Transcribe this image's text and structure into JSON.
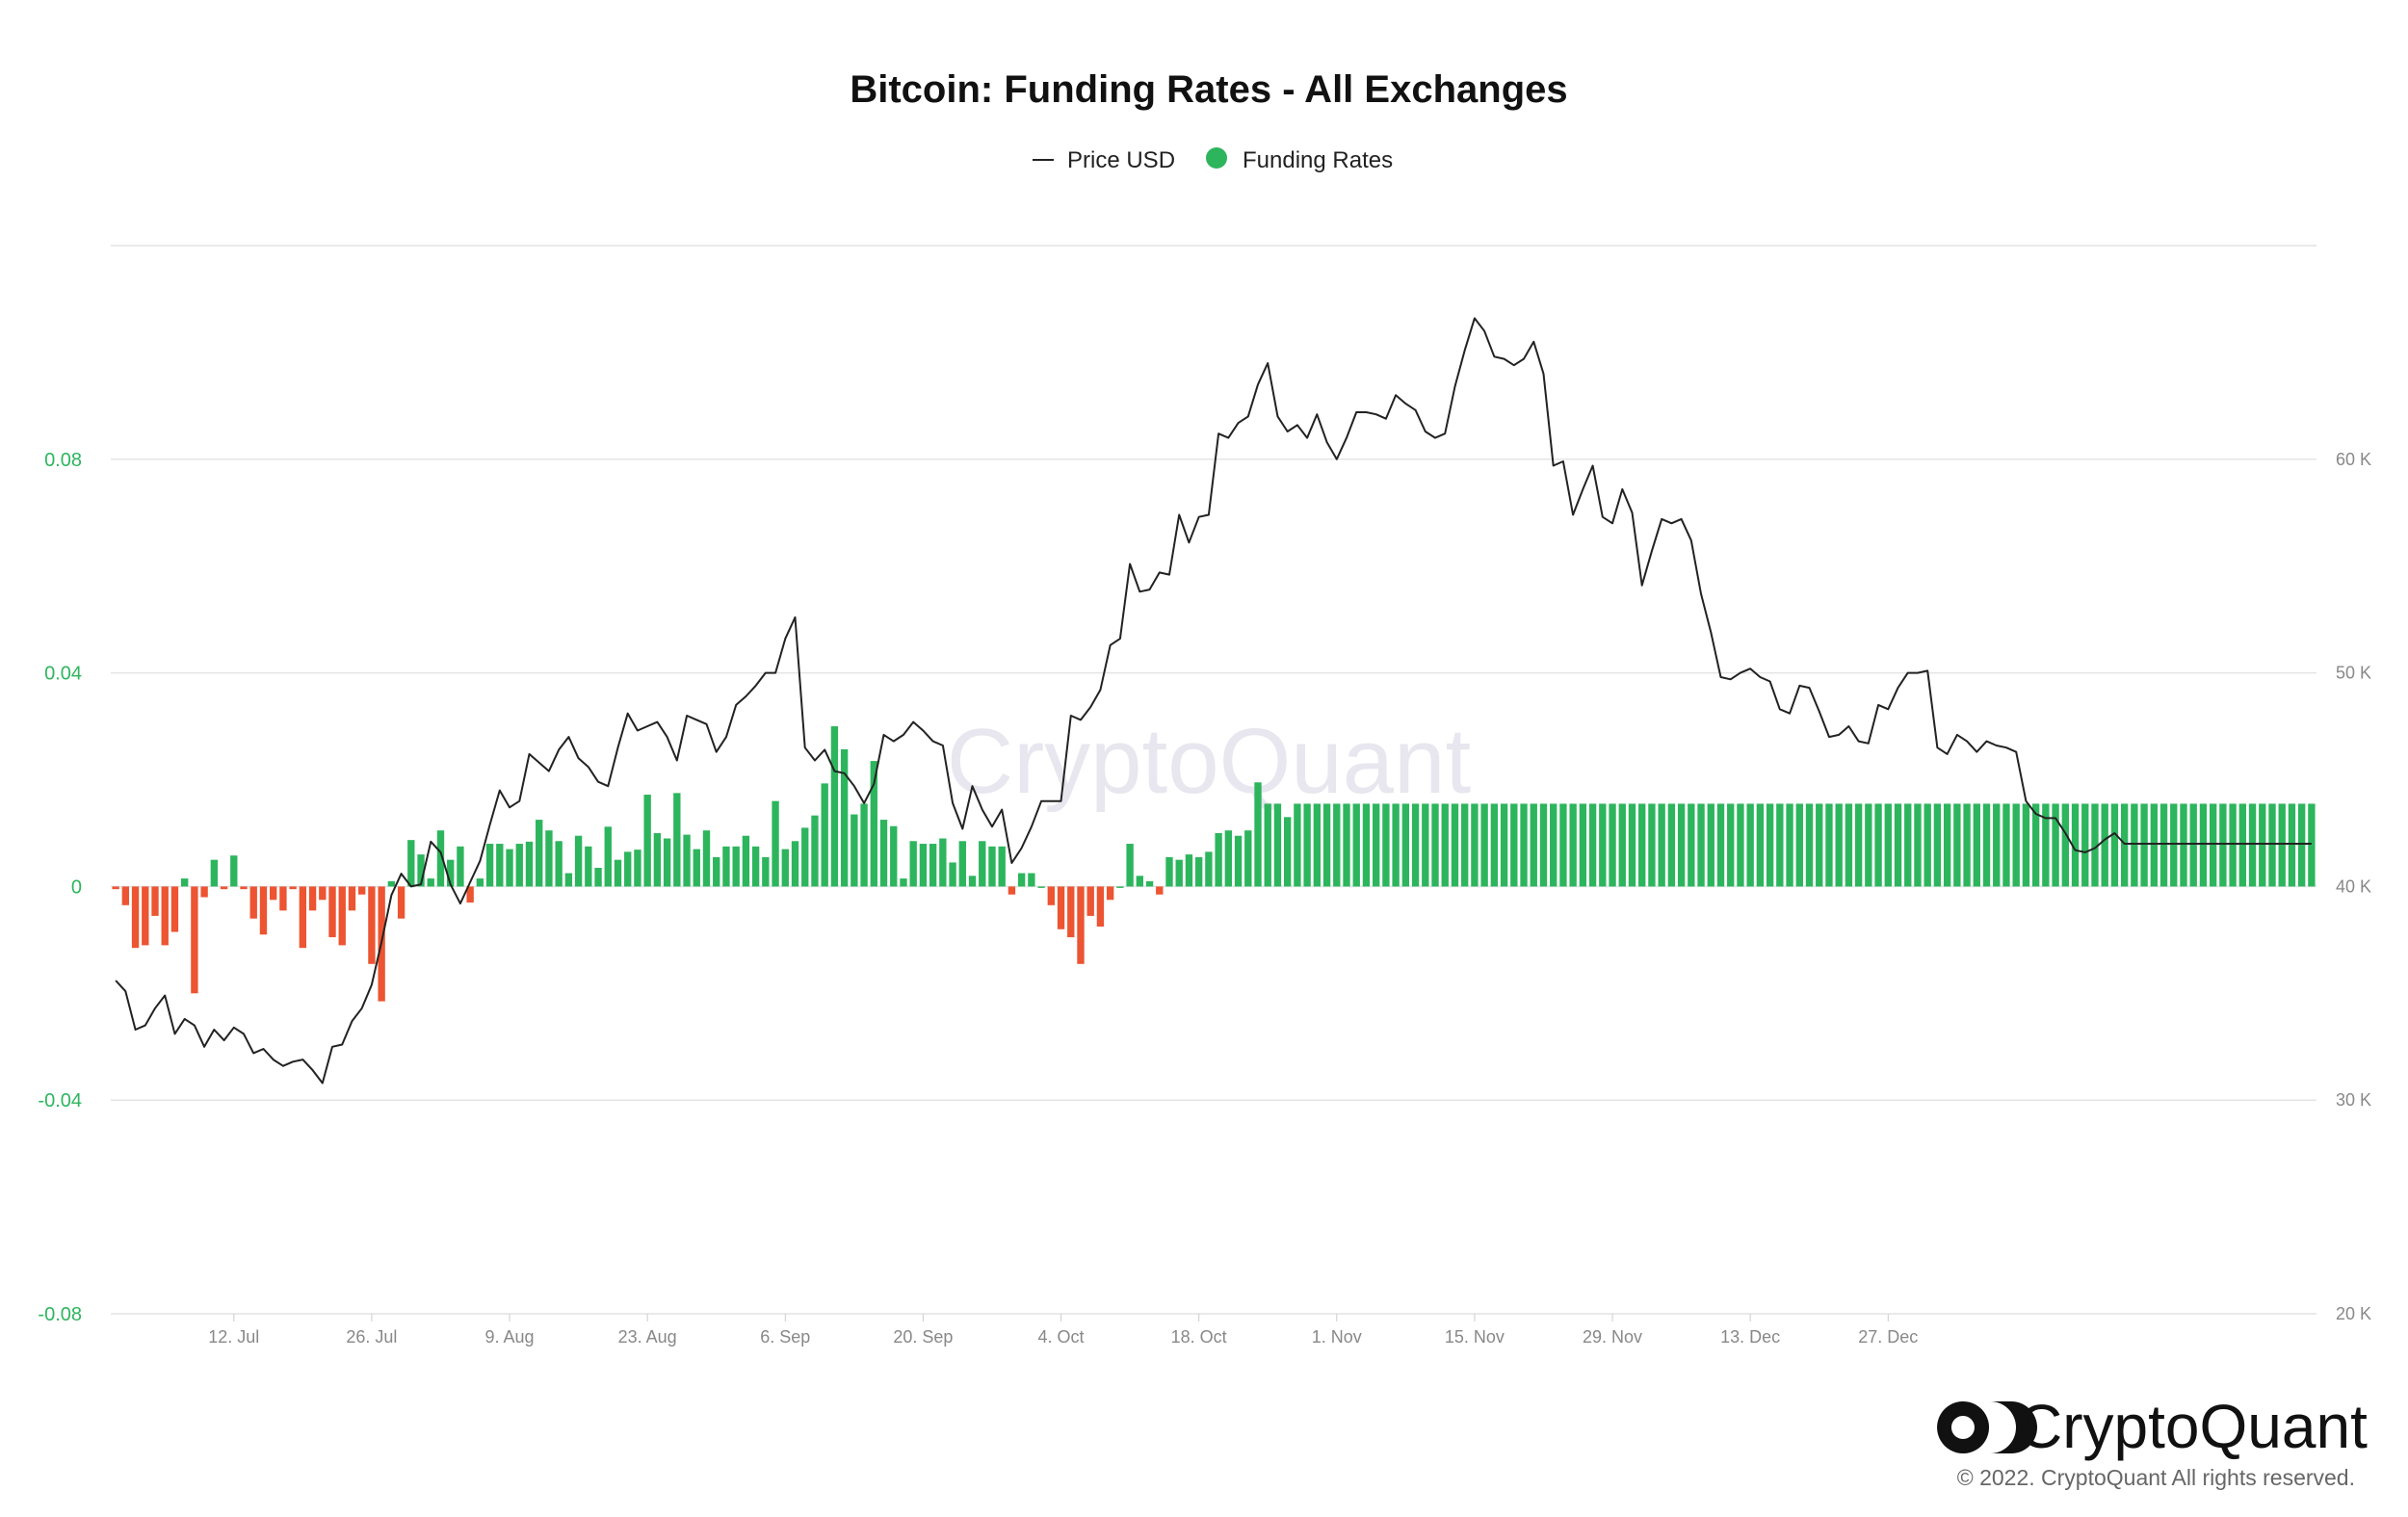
{
  "chart_data": {
    "type": "bar",
    "title": "Bitcoin: Funding Rates - All Exchanges",
    "legend": [
      {
        "label": "Price USD",
        "marker": "line",
        "color": "#222222"
      },
      {
        "label": "Funding Rates",
        "marker": "dot",
        "color": "#2db55d"
      }
    ],
    "legend_position": "top-center",
    "grid": true,
    "colors": {
      "positive": "#2db55d",
      "negative": "#ec5432",
      "price": "#222222"
    },
    "y_left": {
      "ticks": [
        "0.08",
        "0.04",
        "0",
        "-0.04",
        "-0.08"
      ],
      "range": [
        -0.08,
        0.12
      ]
    },
    "y_right": {
      "ticks": [
        "60 K",
        "50 K",
        "40 K",
        "30 K",
        "20 K"
      ],
      "range": [
        20000,
        70000
      ]
    },
    "x_ticks": [
      "12. Jul",
      "26. Jul",
      "9. Aug",
      "23. Aug",
      "6. Sep",
      "20. Sep",
      "4. Oct",
      "18. Oct",
      "1. Nov",
      "15. Nov",
      "29. Nov",
      "13. Dec",
      "27. Dec"
    ],
    "x_start": "2021-06-30",
    "series": [
      {
        "name": "Funding Rates",
        "type": "bar",
        "values": [
          -0.0005,
          -0.0035,
          -0.0115,
          -0.011,
          -0.0055,
          -0.011,
          -0.0085,
          0.0015,
          -0.02,
          -0.002,
          0.005,
          -0.0005,
          0.0058,
          -0.0005,
          -0.006,
          -0.009,
          -0.0025,
          -0.0045,
          -0.0005,
          -0.0115,
          -0.0045,
          -0.0025,
          -0.0095,
          -0.011,
          -0.0045,
          -0.0015,
          -0.0145,
          -0.0215,
          0.001,
          -0.006,
          0.0087,
          0.006,
          0.0015,
          0.0105,
          0.005,
          0.0075,
          -0.003,
          0.0015,
          0.008,
          0.008,
          0.007,
          0.008,
          0.0084,
          0.0125,
          0.0105,
          0.0085,
          0.0025,
          0.0095,
          0.0075,
          0.0035,
          0.0112,
          0.005,
          0.0065,
          0.0069,
          0.0172,
          0.01,
          0.009,
          0.0175,
          0.0097,
          0.007,
          0.0105,
          0.0055,
          0.0075,
          0.0075,
          0.0095,
          0.0075,
          0.0055,
          0.016,
          0.007,
          0.0085,
          0.011,
          0.0133,
          0.0193,
          0.03,
          0.0257,
          0.0135,
          0.0155,
          0.0235,
          0.0125,
          0.0113,
          0.0015,
          0.0085,
          0.008,
          0.008,
          0.009,
          0.0045,
          0.0085,
          0.002,
          0.0085,
          0.0075,
          0.0075,
          -0.0015,
          0.0025,
          0.0025,
          0.0,
          -0.0035,
          -0.008,
          -0.0095,
          -0.0145,
          -0.0055,
          -0.0075,
          -0.0025,
          0.0,
          0.008,
          0.002,
          0.001,
          -0.0015,
          0.0055,
          0.005,
          0.006,
          0.0055,
          0.0065,
          0.01,
          0.0105,
          0.0095,
          0.0105,
          0.0195,
          0.0155,
          0.0155,
          0.013,
          0.0155,
          0.0155,
          0.0155,
          0.0155,
          0.0155,
          0.0155,
          0.0155,
          0.0155,
          0.0155,
          0.0155,
          0.0155,
          0.0155,
          0.0155,
          0.0155,
          0.0155,
          0.0155,
          0.0155,
          0.0155,
          0.0155,
          0.0155,
          0.0155,
          0.0155,
          0.0155,
          0.0155,
          0.0155,
          0.0155,
          0.0155,
          0.0155,
          0.0155,
          0.0155,
          0.0155,
          0.0155,
          0.0155,
          0.0155,
          0.0155,
          0.0155,
          0.0155,
          0.0155,
          0.0155,
          0.0155,
          0.0155,
          0.0155,
          0.0155,
          0.0155,
          0.0155,
          0.0155,
          0.0155,
          0.0155,
          0.0155,
          0.0155,
          0.0155,
          0.0155,
          0.0155,
          0.0155,
          0.0155,
          0.0155,
          0.0155,
          0.0155,
          0.0155,
          0.0155,
          0.0155,
          0.0155,
          0.0155,
          0.0155,
          0.0155,
          0.0155,
          0.0155,
          0.0155,
          0.0155,
          0.0155,
          0.0155,
          0.0155,
          0.0155,
          0.0155,
          0.0155,
          0.0155,
          0.0155,
          0.0155,
          0.0155,
          0.0155,
          0.0155,
          0.0155,
          0.0155,
          0.0155,
          0.0155,
          0.0155,
          0.0155,
          0.0155,
          0.0155,
          0.0155,
          0.0155,
          0.0155,
          0.0155,
          0.0155,
          0.0155,
          0.0155,
          0.0155,
          0.0155,
          0.0155,
          0.0155,
          0.0155,
          0.0155,
          0.0155,
          0.0155
        ]
      },
      {
        "name": "Price USD",
        "type": "line",
        "values": [
          35600,
          35100,
          33300,
          33500,
          34300,
          34900,
          33100,
          33800,
          33500,
          32500,
          33300,
          32800,
          33400,
          33100,
          32200,
          32400,
          31900,
          31600,
          31800,
          31900,
          31400,
          30800,
          32500,
          32600,
          33700,
          34300,
          35400,
          37400,
          39600,
          40600,
          40000,
          40100,
          42100,
          41600,
          40100,
          39200,
          40200,
          41200,
          42900,
          44500,
          43700,
          44000,
          46200,
          45800,
          45400,
          46400,
          47000,
          46000,
          45600,
          44900,
          44700,
          46500,
          48100,
          47300,
          47500,
          47700,
          47000,
          45900,
          48000,
          47800,
          47600,
          46300,
          47000,
          48500,
          48900,
          49400,
          50000,
          50000,
          51600,
          52600,
          46500,
          45900,
          46400,
          45400,
          45300,
          44700,
          43900,
          44800,
          47100,
          46800,
          47100,
          47700,
          47300,
          46800,
          46600,
          43900,
          42700,
          44700,
          43600,
          42800,
          43600,
          41100,
          41800,
          42800,
          44000,
          44000,
          44000,
          48000,
          47800,
          48400,
          49200,
          51300,
          51600,
          55100,
          53800,
          53900,
          54700,
          54600,
          57400,
          56100,
          57300,
          57400,
          61200,
          61000,
          61700,
          62000,
          63500,
          64500,
          62000,
          61300,
          61600,
          61000,
          62100,
          60800,
          60000,
          61000,
          62200,
          62200,
          62100,
          61900,
          63000,
          62600,
          62300,
          61300,
          61000,
          61200,
          63400,
          65100,
          66600,
          66000,
          64800,
          64700,
          64400,
          64700,
          65500,
          64000,
          59700,
          59900,
          57400,
          58600,
          59700,
          57300,
          57000,
          58600,
          57500,
          54100,
          55700,
          57200,
          57000,
          57200,
          56200,
          53700,
          51900,
          49800,
          49700,
          50000,
          50200,
          49800,
          49600,
          48300,
          48100,
          49400,
          49300,
          48200,
          47000,
          47100,
          47500,
          46800,
          46700,
          48500,
          48300,
          49300,
          50000,
          50000,
          50100,
          46500,
          46200,
          47100,
          46800,
          46300,
          46800,
          46600,
          46500,
          46300,
          44000,
          43400,
          43200,
          43200,
          42500,
          41700,
          41600,
          41800,
          42200,
          42500,
          42000,
          42000,
          42000,
          42000,
          42000,
          42000,
          42000,
          42000,
          42000,
          42000,
          42000,
          42000,
          42000,
          42000,
          42000,
          42000,
          42000,
          42000,
          42000,
          42000
        ]
      }
    ]
  },
  "branding": {
    "watermark": "CryptoQuant",
    "logo_text": "CryptoQuant",
    "copyright": "© 2022. CryptoQuant All rights reserved."
  }
}
